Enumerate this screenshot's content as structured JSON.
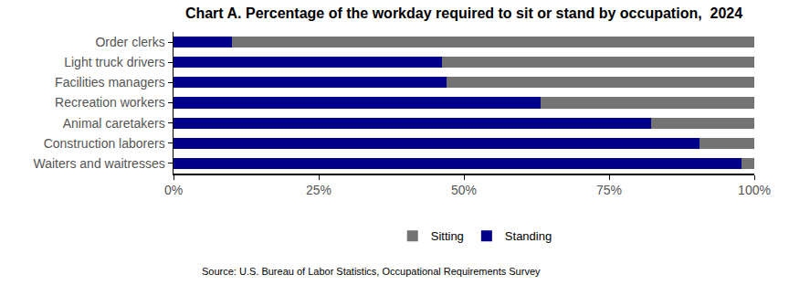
{
  "chart_data": {
    "type": "bar",
    "orientation": "horizontal",
    "stacked": true,
    "title": "Chart A. Percentage of the workday required to sit or stand by occupation,  2024",
    "annotations": [
      "Source: U.S. Bureau of Labor Statistics, Occupational Requirements Survey"
    ],
    "categories": [
      "Order clerks",
      "Light truck drivers",
      "Facilities managers",
      "Recreation workers",
      "Animal caretakers",
      "Construction laborers",
      "Waiters and waitresses"
    ],
    "series": [
      {
        "name": "Standing",
        "color": "#00008b",
        "values": [
          10,
          46.2,
          47,
          63.2,
          82.2,
          90.5,
          97.8
        ]
      },
      {
        "name": "Sitting",
        "color": "#737373",
        "values": [
          90,
          53.8,
          53,
          36.8,
          17.8,
          9.5,
          2.2
        ]
      }
    ],
    "xlim": [
      0,
      100
    ],
    "xticks": [
      {
        "value": 0,
        "label": "0%"
      },
      {
        "value": 25,
        "label": "25%"
      },
      {
        "value": 50,
        "label": "50%"
      },
      {
        "value": 75,
        "label": "75%"
      },
      {
        "value": 100,
        "label": "100%"
      }
    ],
    "grid": false,
    "legend": "bottom"
  }
}
